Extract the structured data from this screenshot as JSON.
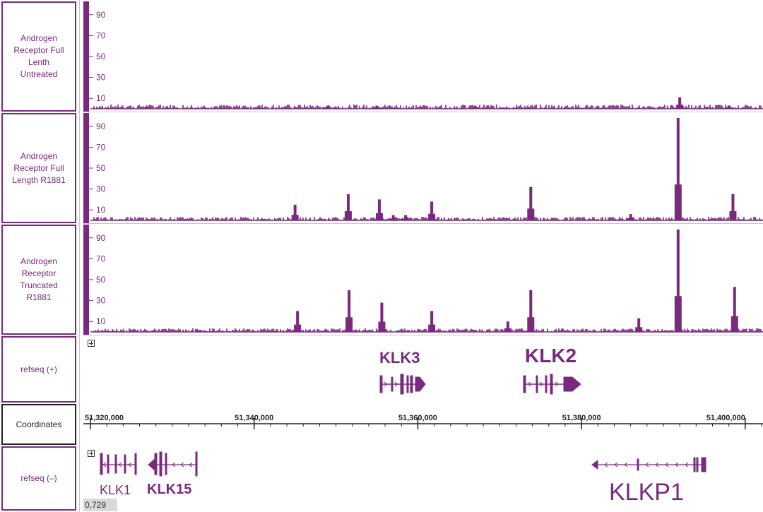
{
  "tracks": [
    {
      "label": "Androgen\nReceptor Full\nLenth\nUntreated",
      "ticks": [
        "90",
        "70",
        "50",
        "30",
        "10"
      ]
    },
    {
      "label": "Androgen\nReceptor Full\nLength R1881",
      "ticks": [
        "90",
        "70",
        "50",
        "30",
        "10"
      ]
    },
    {
      "label": "Androgen\nReceptor\nTruncated\nR1881",
      "ticks": [
        "90",
        "70",
        "50",
        "30",
        "10"
      ]
    }
  ],
  "refseq_plus": {
    "label": "refseq (+)",
    "genes": [
      "KLK3",
      "KLK2"
    ]
  },
  "coordinates": {
    "label": "Coordinates",
    "ticks": [
      "51,320,000",
      "51,340,000",
      "51,360,000",
      "51,380,000",
      "51,400,000"
    ]
  },
  "refseq_minus": {
    "label": "refseq (–)",
    "genes": [
      "KLK1",
      "KLK15",
      "KLKP1"
    ]
  },
  "cursor_readout": "0,729",
  "colors": {
    "track": "#7a2a7e",
    "border": "#7a2a7e"
  },
  "chart_data": {
    "type": "area",
    "x_unit": "genomic coordinate",
    "xlim": [
      51320000,
      51402000
    ],
    "ylim": [
      0,
      100
    ],
    "series": [
      {
        "name": "Androgen Receptor Full Lenth Untreated",
        "peaks": [
          {
            "x": 51327000,
            "y": 2
          },
          {
            "x": 51349000,
            "y": 3
          },
          {
            "x": 51355000,
            "y": 3
          },
          {
            "x": 51367000,
            "y": 3
          },
          {
            "x": 51392000,
            "y": 11
          },
          {
            "x": 51398000,
            "y": 3
          }
        ]
      },
      {
        "name": "Androgen Receptor Full Length R1881",
        "peaks": [
          {
            "x": 51345000,
            "y": 15
          },
          {
            "x": 51351500,
            "y": 25
          },
          {
            "x": 51355300,
            "y": 20
          },
          {
            "x": 51357000,
            "y": 5
          },
          {
            "x": 51358500,
            "y": 5
          },
          {
            "x": 51361700,
            "y": 18
          },
          {
            "x": 51373800,
            "y": 32
          },
          {
            "x": 51386000,
            "y": 6
          },
          {
            "x": 51391800,
            "y": 98
          },
          {
            "x": 51398500,
            "y": 25
          }
        ]
      },
      {
        "name": "Androgen Receptor Truncated R1881",
        "peaks": [
          {
            "x": 51345300,
            "y": 20
          },
          {
            "x": 51351600,
            "y": 40
          },
          {
            "x": 51355600,
            "y": 28
          },
          {
            "x": 51361700,
            "y": 20
          },
          {
            "x": 51371000,
            "y": 10
          },
          {
            "x": 51373800,
            "y": 40
          },
          {
            "x": 51387000,
            "y": 13
          },
          {
            "x": 51391800,
            "y": 98
          },
          {
            "x": 51398700,
            "y": 43
          }
        ]
      }
    ]
  }
}
